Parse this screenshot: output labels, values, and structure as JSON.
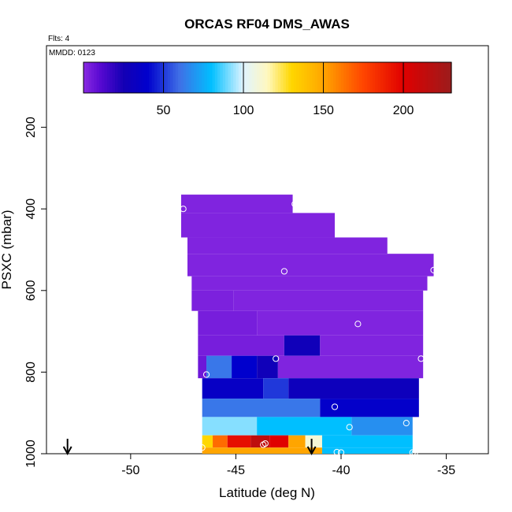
{
  "chart_data": {
    "type": "heatmap",
    "title": "ORCAS RF04 DMS_AWAS",
    "flights_label": "Flts: 4",
    "date_label": "MMDD: 0123",
    "xlabel": "Latitude (deg N)",
    "ylabel": "PSXC (mbar)",
    "xlim": [
      -54,
      -33
    ],
    "ylim": [
      1000,
      0
    ],
    "xticks": [
      -50,
      -45,
      -40,
      -35
    ],
    "yticks": [
      200,
      400,
      600,
      800,
      1000
    ],
    "colorbar": {
      "range": [
        0,
        230
      ],
      "ticks": [
        50,
        100,
        150,
        200
      ],
      "stops": [
        [
          0,
          "#8a2be2"
        ],
        [
          10,
          "#5a0ad2"
        ],
        [
          25,
          "#1400b4"
        ],
        [
          40,
          "#0000cd"
        ],
        [
          60,
          "#3f6fe6"
        ],
        [
          80,
          "#00bfff"
        ],
        [
          100,
          "#e0f4ff"
        ],
        [
          115,
          "#fff8c0"
        ],
        [
          130,
          "#ffd700"
        ],
        [
          150,
          "#ffa500"
        ],
        [
          175,
          "#ff4500"
        ],
        [
          200,
          "#e00000"
        ],
        [
          230,
          "#9b1c1c"
        ]
      ]
    },
    "cells": [
      {
        "lat": [
          -47.6,
          -42.3
        ],
        "p": [
          365,
          410
        ],
        "v": 2
      },
      {
        "lat": [
          -47.6,
          -40.3
        ],
        "p": [
          410,
          470
        ],
        "v": 2
      },
      {
        "lat": [
          -47.3,
          -37.8
        ],
        "p": [
          470,
          510
        ],
        "v": 2
      },
      {
        "lat": [
          -47.3,
          -35.6
        ],
        "p": [
          510,
          565
        ],
        "v": 2
      },
      {
        "lat": [
          -47.1,
          -35.9
        ],
        "p": [
          565,
          600
        ],
        "v": 2
      },
      {
        "lat": [
          -47.1,
          -45.1
        ],
        "p": [
          600,
          650
        ],
        "v": 3
      },
      {
        "lat": [
          -45.1,
          -36.1
        ],
        "p": [
          600,
          650
        ],
        "v": 2
      },
      {
        "lat": [
          -46.8,
          -44.0
        ],
        "p": [
          650,
          710
        ],
        "v": 4
      },
      {
        "lat": [
          -44.0,
          -36.1
        ],
        "p": [
          650,
          710
        ],
        "v": 2
      },
      {
        "lat": [
          -46.8,
          -42.7
        ],
        "p": [
          710,
          760
        ],
        "v": 4
      },
      {
        "lat": [
          -42.7,
          -41.0
        ],
        "p": [
          710,
          760
        ],
        "v": 28
      },
      {
        "lat": [
          -41.0,
          -36.1
        ],
        "p": [
          710,
          760
        ],
        "v": 2
      },
      {
        "lat": [
          -46.8,
          -46.4
        ],
        "p": [
          760,
          815
        ],
        "v": 6
      },
      {
        "lat": [
          -46.4,
          -45.2
        ],
        "p": [
          760,
          815
        ],
        "v": 62
      },
      {
        "lat": [
          -45.2,
          -44.0
        ],
        "p": [
          760,
          815
        ],
        "v": 40
      },
      {
        "lat": [
          -44.0,
          -43.0
        ],
        "p": [
          760,
          815
        ],
        "v": 28
      },
      {
        "lat": [
          -43.0,
          -36.1
        ],
        "p": [
          760,
          815
        ],
        "v": 2
      },
      {
        "lat": [
          -46.6,
          -43.7
        ],
        "p": [
          815,
          865
        ],
        "v": 35
      },
      {
        "lat": [
          -43.7,
          -42.5
        ],
        "p": [
          815,
          865
        ],
        "v": 50
      },
      {
        "lat": [
          -42.5,
          -36.3
        ],
        "p": [
          815,
          865
        ],
        "v": 30
      },
      {
        "lat": [
          -46.6,
          -41.0
        ],
        "p": [
          865,
          910
        ],
        "v": 62
      },
      {
        "lat": [
          -41.0,
          -36.3
        ],
        "p": [
          865,
          910
        ],
        "v": 38
      },
      {
        "lat": [
          -46.6,
          -44.0
        ],
        "p": [
          910,
          955
        ],
        "v": 92
      },
      {
        "lat": [
          -44.0,
          -39.5
        ],
        "p": [
          910,
          955
        ],
        "v": 80
      },
      {
        "lat": [
          -39.5,
          -36.6
        ],
        "p": [
          910,
          955
        ],
        "v": 68
      },
      {
        "lat": [
          -46.6,
          -46.1
        ],
        "p": [
          955,
          985
        ],
        "v": 130
      },
      {
        "lat": [
          -46.1,
          -45.4
        ],
        "p": [
          955,
          985
        ],
        "v": 165
      },
      {
        "lat": [
          -45.4,
          -44.3
        ],
        "p": [
          955,
          985
        ],
        "v": 195
      },
      {
        "lat": [
          -44.3,
          -43.4
        ],
        "p": [
          955,
          985
        ],
        "v": 215
      },
      {
        "lat": [
          -43.4,
          -42.5
        ],
        "p": [
          955,
          985
        ],
        "v": 200
      },
      {
        "lat": [
          -42.5,
          -41.7
        ],
        "p": [
          955,
          985
        ],
        "v": 150
      },
      {
        "lat": [
          -41.7,
          -40.9
        ],
        "p": [
          955,
          985
        ],
        "v": 110
      },
      {
        "lat": [
          -40.9,
          -36.6
        ],
        "p": [
          955,
          985
        ],
        "v": 80
      },
      {
        "lat": [
          -46.6,
          -40.9
        ],
        "p": [
          985,
          1000
        ],
        "v": 150
      },
      {
        "lat": [
          -40.9,
          -36.6
        ],
        "p": [
          985,
          1000
        ],
        "v": 80
      }
    ],
    "samples": [
      {
        "lat": -47.5,
        "p": 400
      },
      {
        "lat": -42.2,
        "p": 388
      },
      {
        "lat": -42.7,
        "p": 553
      },
      {
        "lat": -35.6,
        "p": 550
      },
      {
        "lat": -39.2,
        "p": 682
      },
      {
        "lat": -43.1,
        "p": 767
      },
      {
        "lat": -36.2,
        "p": 767
      },
      {
        "lat": -47.0,
        "p": 780
      },
      {
        "lat": -46.4,
        "p": 806
      },
      {
        "lat": -40.3,
        "p": 885
      },
      {
        "lat": -36.9,
        "p": 925
      },
      {
        "lat": -39.6,
        "p": 935
      },
      {
        "lat": -46.6,
        "p": 985
      },
      {
        "lat": -43.6,
        "p": 975
      },
      {
        "lat": -43.7,
        "p": 978
      },
      {
        "lat": -40.2,
        "p": 996
      },
      {
        "lat": -40.0,
        "p": 997
      },
      {
        "lat": -36.6,
        "p": 997
      },
      {
        "lat": -36.5,
        "p": 998
      }
    ],
    "takeoff_landing_markers": [
      -53.0,
      -41.4
    ]
  }
}
